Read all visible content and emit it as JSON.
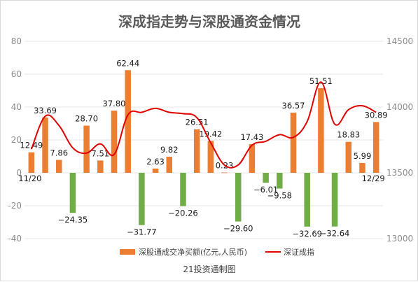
{
  "chart_data": {
    "type": "bar+line",
    "title": "深成指走势与深股通资金情况",
    "source": "21投资通制图",
    "colors": {
      "positive_bar": "#ed7d31",
      "negative_bar": "#70ad47",
      "line": "#e00000",
      "grid": "#e6e6e6",
      "leader": "#808080"
    },
    "x_labels": {
      "first": "11/20",
      "last": "12/29"
    },
    "y_left": {
      "min": -40,
      "max": 80,
      "ticks": [
        "80",
        "60",
        "40",
        "20",
        "0",
        "-20",
        "-40"
      ]
    },
    "y_right": {
      "min": 13000,
      "max": 14500,
      "ticks": [
        "14500",
        "14000",
        "13500",
        "13000"
      ]
    },
    "legend_position": "bottom",
    "series": [
      {
        "name": "深股通成交净买额(亿元,人民币)",
        "kind": "bar",
        "axis": "left",
        "values": [
          12.49,
          33.69,
          7.86,
          -24.35,
          28.7,
          7.51,
          37.8,
          62.44,
          -31.77,
          2.63,
          9.82,
          -20.26,
          26.51,
          19.42,
          0.23,
          -29.6,
          17.43,
          -6.01,
          -9.58,
          36.57,
          -32.69,
          51.51,
          -32.64,
          18.83,
          5.99,
          30.89
        ],
        "labels": [
          "12.49",
          "33.69",
          "7.86",
          "−24.35",
          "28.70",
          "7.51",
          "37.80",
          "62.44",
          "−31.77",
          "2.63",
          "9.82",
          "−20.26",
          "26.51",
          "19.42",
          "0.23",
          "−29.60",
          "17.43",
          "−6.01",
          "−9.58",
          "36.57",
          "−32.69",
          "51.51",
          "−32.64",
          "18.83",
          "5.99",
          "30.89"
        ]
      },
      {
        "name": "深证成指",
        "kind": "line",
        "axis": "right",
        "values": [
          13680,
          13930,
          13860,
          13690,
          13650,
          13720,
          13640,
          13940,
          13960,
          13990,
          13960,
          13950,
          13920,
          13730,
          13560,
          13560,
          13710,
          13740,
          13790,
          13770,
          13890,
          14190,
          13870,
          13980,
          14010,
          13960
        ]
      }
    ]
  }
}
